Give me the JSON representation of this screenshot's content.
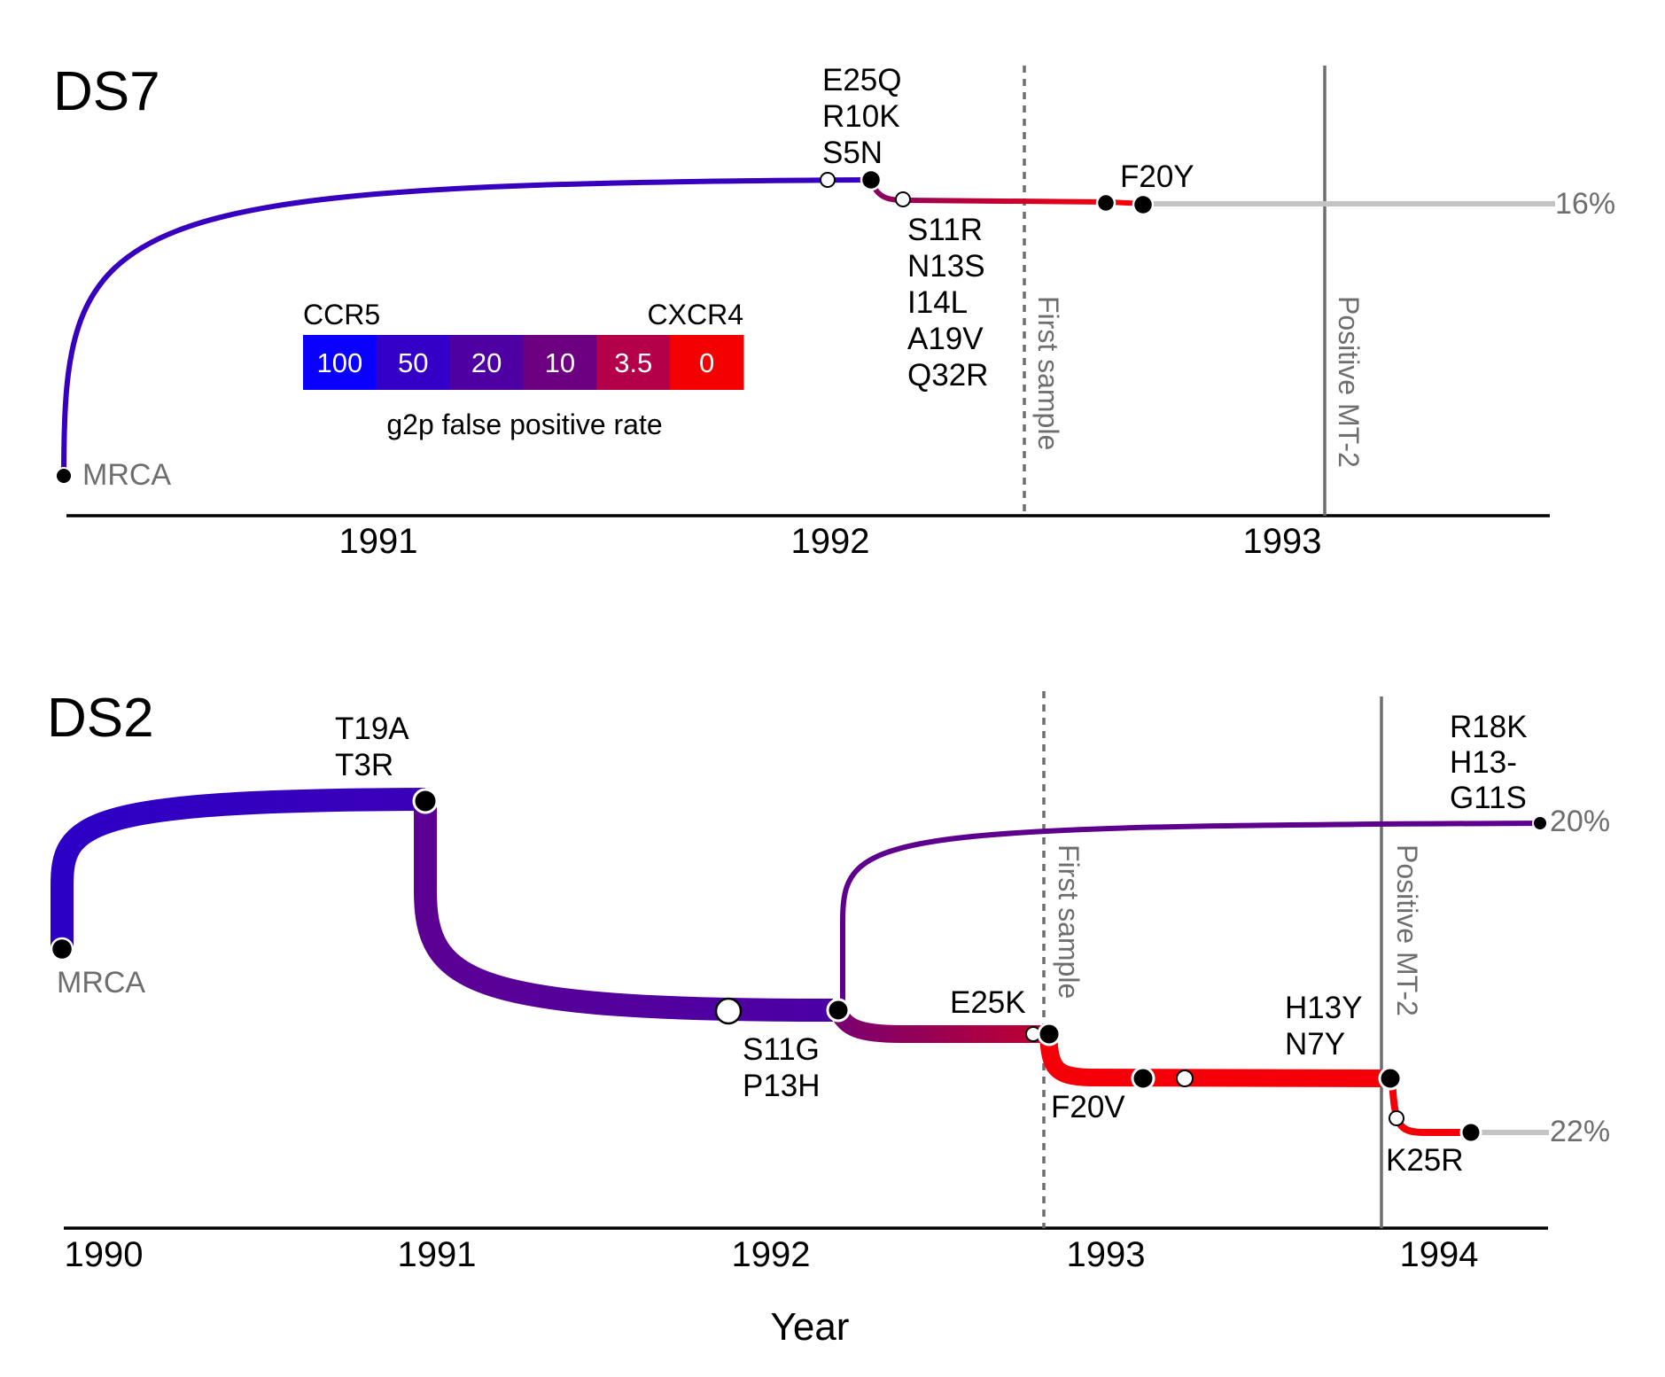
{
  "legend": {
    "left_label": "CCR5",
    "right_label": "CXCR4",
    "caption": "g2p false positive rate",
    "cells": [
      {
        "label": "100",
        "color": "#0a00ff"
      },
      {
        "label": "50",
        "color": "#3400c8"
      },
      {
        "label": "20",
        "color": "#4e00a2"
      },
      {
        "label": "10",
        "color": "#6d0080"
      },
      {
        "label": "3.5",
        "color": "#b40048"
      },
      {
        "label": "0",
        "color": "#f40000"
      }
    ]
  },
  "colors": {
    "ccr5_deep": "#2d00c6",
    "ccr5_mid": "#3a00b8",
    "purple": "#4c00a4",
    "violet": "#5f0090",
    "crimson": "#a8003c",
    "red": "#f40008",
    "extant": "#c4c4c4",
    "ref_line": "#6e6e6e",
    "axis": "#000000"
  },
  "panels": [
    {
      "id": "ds7",
      "title": "DS7",
      "ticks": [
        "1991",
        "1992",
        "1993"
      ],
      "root_label": "MRCA",
      "vertical_lines": [
        {
          "label": "First sample",
          "style": "dashed"
        },
        {
          "label": "Positive MT-2",
          "style": "solid"
        }
      ],
      "extant_labels": [
        "16%"
      ],
      "mutation_groups": [
        {
          "lines": [
            "E25Q",
            "R10K",
            "S5N"
          ]
        },
        {
          "lines": [
            "S11R",
            "N13S",
            "I14L",
            "A19V",
            "Q32R"
          ]
        },
        {
          "lines": [
            "F20Y"
          ]
        }
      ]
    },
    {
      "id": "ds2",
      "title": "DS2",
      "ticks": [
        "1990",
        "1991",
        "1992",
        "1993",
        "1994"
      ],
      "root_label": "MRCA",
      "vertical_lines": [
        {
          "label": "First sample",
          "style": "dashed"
        },
        {
          "label": "Positive MT-2",
          "style": "solid"
        }
      ],
      "extant_labels": [
        "20%",
        "22%"
      ],
      "mutation_groups": [
        {
          "lines": [
            "T19A",
            "T3R"
          ]
        },
        {
          "lines": [
            "S11G",
            "P13H"
          ]
        },
        {
          "lines": [
            "R18K",
            "H13-",
            "G11S"
          ]
        },
        {
          "lines": [
            "E25K"
          ]
        },
        {
          "lines": [
            "F20V"
          ]
        },
        {
          "lines": [
            "H13Y",
            "N7Y"
          ]
        },
        {
          "lines": [
            "K25R"
          ]
        }
      ]
    }
  ],
  "x_axis_title": "Year"
}
